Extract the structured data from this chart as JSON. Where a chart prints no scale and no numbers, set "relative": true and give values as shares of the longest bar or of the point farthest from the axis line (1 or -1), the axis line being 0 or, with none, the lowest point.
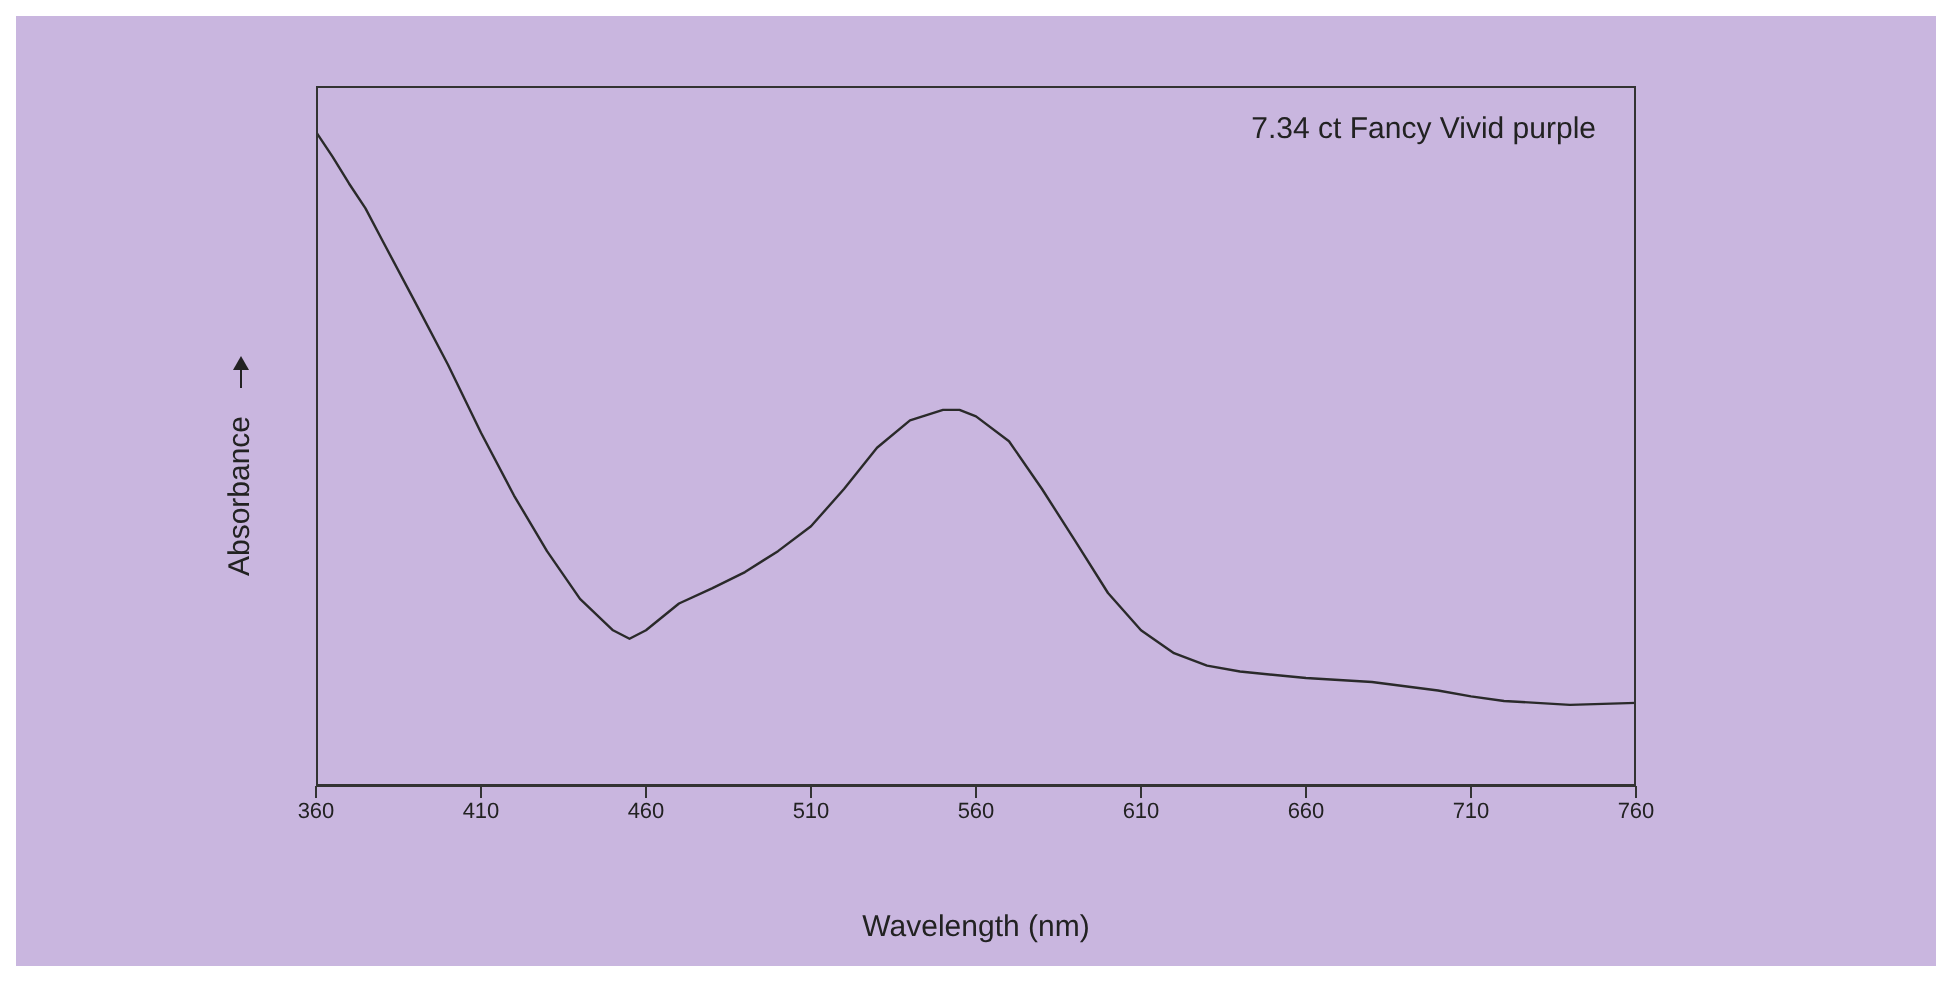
{
  "chart_data": {
    "type": "line",
    "relative": true,
    "xlabel": "Wavelength (nm)",
    "ylabel": "Absorbance",
    "annotations": [
      "7.34 ct Fancy Vivid purple"
    ],
    "xlim": [
      360,
      760
    ],
    "xticks": [
      360,
      410,
      460,
      510,
      560,
      610,
      660,
      710,
      760
    ],
    "grid": false,
    "legend": false,
    "marker": "none",
    "line_style": "solid",
    "x": [
      360,
      365,
      370,
      375,
      380,
      390,
      400,
      410,
      420,
      430,
      440,
      450,
      455,
      460,
      470,
      480,
      490,
      500,
      510,
      520,
      530,
      540,
      550,
      555,
      560,
      570,
      580,
      590,
      600,
      610,
      620,
      630,
      640,
      660,
      680,
      700,
      710,
      720,
      740,
      760
    ],
    "series": [
      {
        "color": "#2a2a2a",
        "values": [
          1,
          0.962,
          0.921,
          0.883,
          0.835,
          0.74,
          0.644,
          0.54,
          0.444,
          0.359,
          0.286,
          0.238,
          0.225,
          0.238,
          0.279,
          0.302,
          0.327,
          0.359,
          0.397,
          0.454,
          0.517,
          0.559,
          0.575,
          0.575,
          0.565,
          0.527,
          0.454,
          0.375,
          0.295,
          0.238,
          0.203,
          0.184,
          0.175,
          0.165,
          0.159,
          0.146,
          0.137,
          0.13,
          0.124,
          0.127
        ]
      }
    ]
  }
}
